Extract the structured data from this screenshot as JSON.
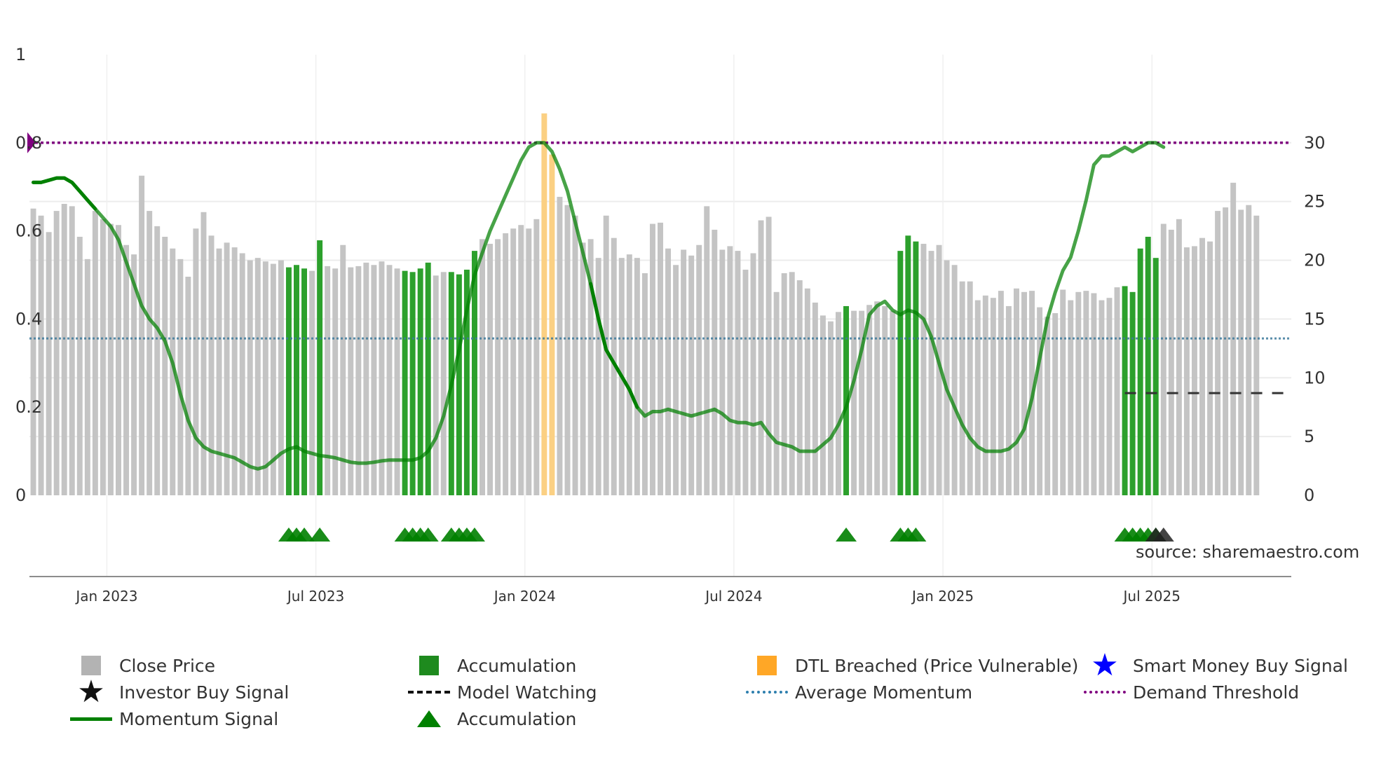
{
  "source_text": "source: sharemaestro.com",
  "chart_data": {
    "type": "bar",
    "title": "",
    "xlabel": "",
    "ylabel": "",
    "left_axis": {
      "ylim": [
        0,
        1
      ],
      "ticks": [
        0,
        0.2,
        0.4,
        0.6,
        0.8,
        1
      ],
      "tick_labels": [
        "0",
        "0.2",
        "0.4",
        "0.6",
        "0.8",
        "1"
      ]
    },
    "right_axis": {
      "ylim": [
        0,
        37.5
      ],
      "ticks": [
        0,
        5,
        10,
        15,
        20,
        25,
        30
      ],
      "tick_labels": [
        "0",
        "5",
        "10",
        "15",
        "20",
        "25",
        "30"
      ]
    },
    "x_ticks": [
      {
        "index": 9.5,
        "label": "Jan 2023"
      },
      {
        "index": 36.5,
        "label": "Jul 2023"
      },
      {
        "index": 63.5,
        "label": "Jan 2024"
      },
      {
        "index": 90.5,
        "label": "Jul 2024"
      },
      {
        "index": 117.5,
        "label": "Jan 2025"
      },
      {
        "index": 144.5,
        "label": "Jul 2025"
      }
    ],
    "bar_count": 163,
    "close_price": [
      24.4,
      23.8,
      22.4,
      24.2,
      24.8,
      24.6,
      22.0,
      20.1,
      24.2,
      23.5,
      23.1,
      23.0,
      21.3,
      20.5,
      27.2,
      24.2,
      22.9,
      22.0,
      21.0,
      20.1,
      18.6,
      22.7,
      24.1,
      22.1,
      21.0,
      21.5,
      21.1,
      20.6,
      20.0,
      20.2,
      19.9,
      19.7,
      20.0,
      19.4,
      19.6,
      19.3,
      19.1,
      21.7,
      19.5,
      19.3,
      21.3,
      19.4,
      19.5,
      19.8,
      19.6,
      19.9,
      19.6,
      19.3,
      19.1,
      19.0,
      19.3,
      19.8,
      18.7,
      19.0,
      19.0,
      18.8,
      19.2,
      20.8,
      21.8,
      21.4,
      21.8,
      22.3,
      22.7,
      23.0,
      22.7,
      23.5,
      32.5,
      29.0,
      25.4,
      24.7,
      23.8,
      21.5,
      21.8,
      20.2,
      23.8,
      21.9,
      20.2,
      20.5,
      20.2,
      18.9,
      23.1,
      23.2,
      21.0,
      19.6,
      20.9,
      20.4,
      21.3,
      24.6,
      22.6,
      20.9,
      21.2,
      20.8,
      19.2,
      20.6,
      23.4,
      23.7,
      17.3,
      18.9,
      19.0,
      18.3,
      17.6,
      16.4,
      15.3,
      14.8,
      15.6,
      16.1,
      15.7,
      15.7,
      16.2,
      16.5,
      16.1,
      15.7,
      20.8,
      22.1,
      21.6,
      21.4,
      20.8,
      21.3,
      20.0,
      19.6,
      18.2,
      18.2,
      16.6,
      17.0,
      16.8,
      17.4,
      16.1,
      17.6,
      17.3,
      17.4,
      16.0,
      15.2,
      15.5,
      17.5,
      16.6,
      17.3,
      17.4,
      17.2,
      16.6,
      16.8,
      17.7,
      17.8,
      17.3,
      21.0,
      22.0,
      20.2,
      23.1,
      22.6,
      23.5,
      21.1,
      21.2,
      21.9,
      21.6,
      24.2,
      24.5,
      26.6,
      24.3,
      24.7,
      23.8
    ],
    "price_markers": {
      "Accumulation": [
        33,
        34,
        35,
        37,
        48,
        49,
        50,
        51,
        54,
        55,
        56,
        57,
        105,
        112,
        113,
        114,
        141,
        142,
        143,
        144,
        145
      ],
      "DTL Breached (Price Vulnerable)": [
        66,
        67
      ]
    },
    "momentum_signal": [
      0.71,
      0.71,
      0.715,
      0.72,
      0.72,
      0.71,
      0.69,
      0.67,
      0.65,
      0.63,
      0.61,
      0.58,
      0.53,
      0.48,
      0.43,
      0.4,
      0.38,
      0.35,
      0.3,
      0.23,
      0.17,
      0.13,
      0.11,
      0.1,
      0.095,
      0.09,
      0.085,
      0.075,
      0.065,
      0.06,
      0.065,
      0.08,
      0.095,
      0.105,
      0.11,
      0.1,
      0.095,
      0.09,
      0.088,
      0.085,
      0.08,
      0.075,
      0.073,
      0.073,
      0.075,
      0.078,
      0.08,
      0.08,
      0.08,
      0.08,
      0.085,
      0.1,
      0.13,
      0.18,
      0.25,
      0.33,
      0.42,
      0.5,
      0.55,
      0.6,
      0.64,
      0.68,
      0.72,
      0.76,
      0.79,
      0.8,
      0.8,
      0.78,
      0.74,
      0.69,
      0.62,
      0.55,
      0.48,
      0.4,
      0.33,
      0.3,
      0.27,
      0.24,
      0.2,
      0.18,
      0.19,
      0.19,
      0.195,
      0.19,
      0.185,
      0.18,
      0.185,
      0.19,
      0.195,
      0.185,
      0.17,
      0.165,
      0.165,
      0.16,
      0.165,
      0.14,
      0.12,
      0.115,
      0.11,
      0.1,
      0.1,
      0.1,
      0.115,
      0.13,
      0.16,
      0.2,
      0.26,
      0.33,
      0.41,
      0.43,
      0.44,
      0.42,
      0.41,
      0.42,
      0.415,
      0.4,
      0.36,
      0.3,
      0.24,
      0.2,
      0.16,
      0.13,
      0.11,
      0.1,
      0.1,
      0.1,
      0.105,
      0.12,
      0.15,
      0.22,
      0.31,
      0.4,
      0.46,
      0.51,
      0.54,
      0.6,
      0.67,
      0.75,
      0.77,
      0.77,
      0.78,
      0.79,
      0.78,
      0.79,
      0.8,
      0.8,
      0.79
    ],
    "momentum_color_legend": "#008000",
    "average_momentum": 0.356,
    "demand_threshold": 0.8,
    "model_watching_right_value": 8.7,
    "model_watching_range": [
      141,
      162
    ],
    "accumulation_triangles": [
      33,
      34,
      35,
      37,
      48,
      49,
      50,
      51,
      54,
      55,
      56,
      57,
      105,
      112,
      113,
      114,
      141,
      142,
      143,
      144,
      145
    ],
    "investor_buy_triangles": [
      145,
      146
    ],
    "colors": {
      "close_price": "#c4c4c4",
      "accumulation": "#2ca02c",
      "dtl_breached": "#fbd083",
      "momentum": "#008000",
      "average_momentum": "#3d7a9c",
      "demand_threshold": "#800080",
      "model_watching": "#333333",
      "triangle": "#008000",
      "investor_buy": "#222222",
      "smart_money": "#0000ff",
      "legend_close_price": "#b3b3b3",
      "legend_accumulation": "#1e8a1e",
      "legend_dtl": "#ffa726"
    },
    "legend": [
      {
        "key": "close_price",
        "label": "Close Price",
        "symbol": "square"
      },
      {
        "key": "accumulation",
        "label": "Accumulation",
        "symbol": "square"
      },
      {
        "key": "dtl_breached",
        "label": "DTL Breached (Price Vulnerable)",
        "symbol": "square"
      },
      {
        "key": "smart_money",
        "label": "Smart Money Buy Signal",
        "symbol": "star"
      },
      {
        "key": "investor_buy",
        "label": "Investor Buy Signal",
        "symbol": "star"
      },
      {
        "key": "model_watching",
        "label": "Model Watching",
        "symbol": "dash"
      },
      {
        "key": "average_momentum",
        "label": "Average Momentum",
        "symbol": "dot"
      },
      {
        "key": "demand_threshold",
        "label": "Demand Threshold",
        "symbol": "dot"
      },
      {
        "key": "momentum",
        "label": "Momentum Signal",
        "symbol": "line"
      },
      {
        "key": "accumulation_triangle",
        "label": "Accumulation",
        "symbol": "triangle"
      }
    ]
  }
}
